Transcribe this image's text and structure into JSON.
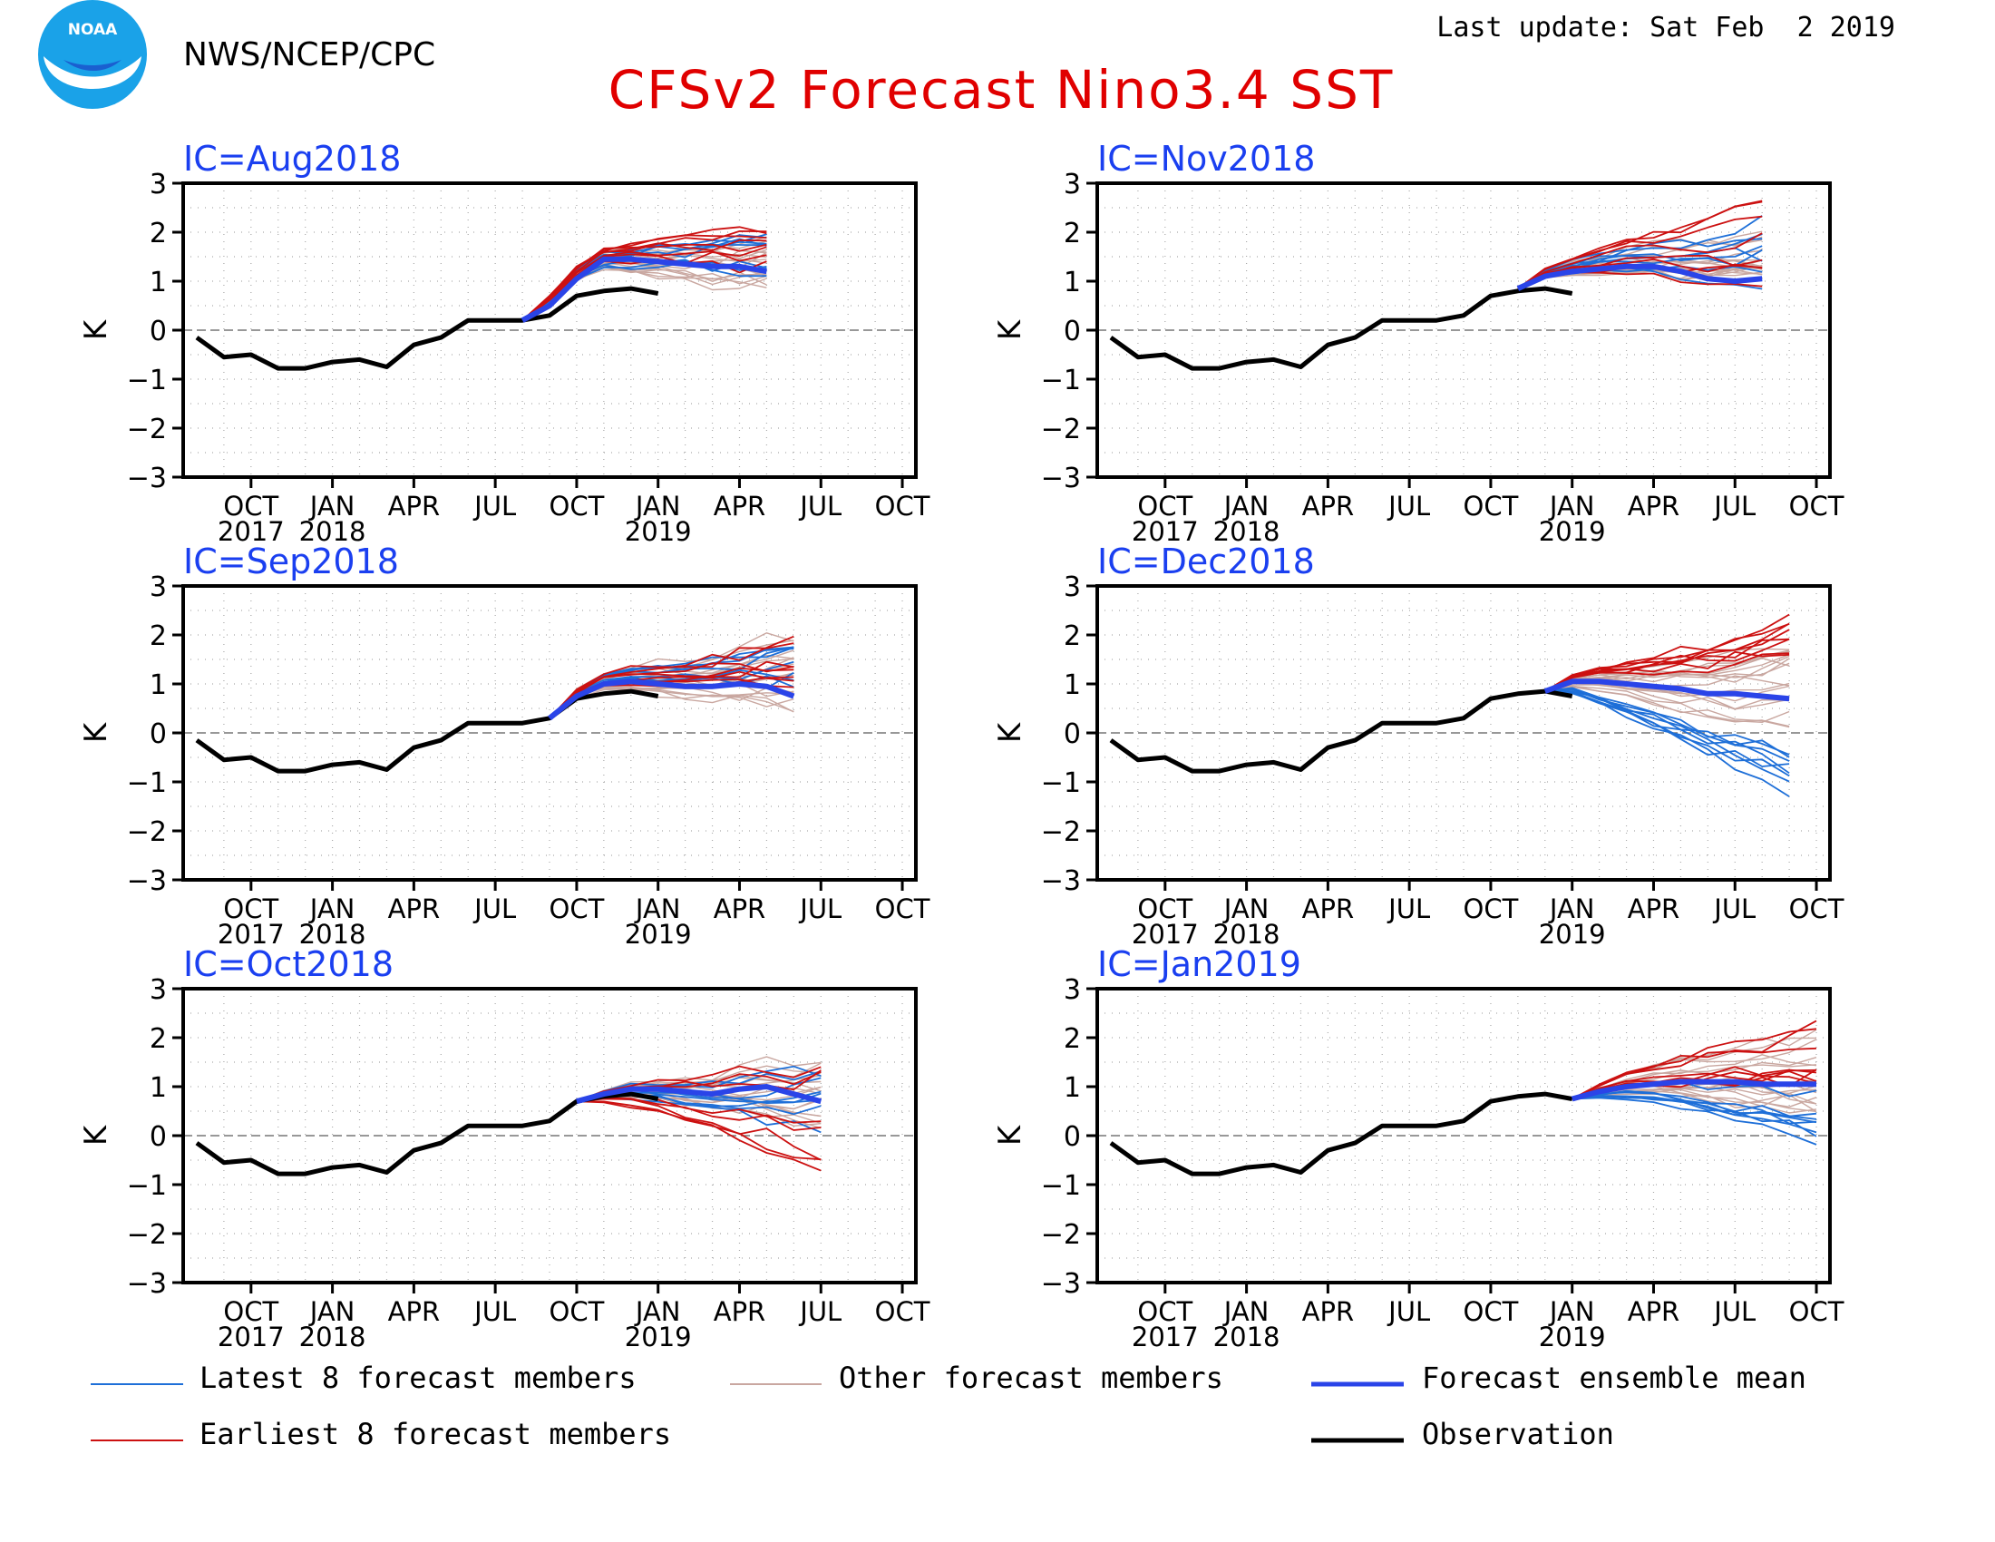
{
  "header": {
    "agency": "NWS/NCEP/CPC",
    "title": "CFSv2 Forecast Nino3.4 SST",
    "last_update": "Last update: Sat Feb  2 2019",
    "logo_text": "NOAA"
  },
  "colors": {
    "title": "#e00000",
    "panel_title": "#1a3ff0",
    "latest": "#1e6fd8",
    "earliest": "#cc1111",
    "other": "#c9a7a0",
    "mean": "#2a44e8",
    "obs": "#000000"
  },
  "legend": {
    "latest": "Latest 8 forecast members",
    "other": "Other forecast members",
    "mean": "Forecast ensemble mean",
    "earliest": "Earliest 8 forecast members",
    "obs": "Observation"
  },
  "chart_data": [
    {
      "type": "line",
      "title": "IC=Aug2018",
      "ylabel": "K",
      "xlabel": "",
      "ylim": [
        -3,
        3
      ],
      "yticks": [
        "3",
        "2",
        "1",
        "0",
        "−1",
        "−2",
        "−3"
      ],
      "x_range": [
        "2017-08",
        "2019-10"
      ],
      "x_ticks": [
        "OCT",
        "JAN",
        "APR",
        "JUL",
        "OCT",
        "JAN",
        "APR",
        "JUL",
        "OCT"
      ],
      "x_tick_years": [
        "2017",
        "2018",
        "",
        "",
        "",
        "2019",
        "",
        "",
        ""
      ],
      "grid": true,
      "series": [
        {
          "name": "Observation",
          "x": [
            "2017-08",
            "2017-09",
            "2017-10",
            "2017-11",
            "2017-12",
            "2018-01",
            "2018-02",
            "2018-03",
            "2018-04",
            "2018-05",
            "2018-06",
            "2018-07",
            "2018-08",
            "2018-09",
            "2018-10",
            "2018-11",
            "2018-12",
            "2019-01"
          ],
          "values": [
            -0.15,
            -0.55,
            -0.5,
            -0.78,
            -0.78,
            -0.65,
            -0.6,
            -0.75,
            -0.3,
            -0.15,
            0.2,
            0.2,
            0.2,
            0.3,
            0.7,
            0.8,
            0.85,
            0.75
          ]
        },
        {
          "name": "Forecast ensemble mean",
          "x": [
            "2018-08",
            "2018-09",
            "2018-10",
            "2018-11",
            "2018-12",
            "2019-01",
            "2019-02",
            "2019-03",
            "2019-04",
            "2019-05"
          ],
          "values": [
            0.2,
            0.5,
            1.05,
            1.45,
            1.45,
            1.4,
            1.35,
            1.3,
            1.3,
            1.2
          ]
        }
      ],
      "spread": {
        "latest": [
          1.55,
          0.35
        ],
        "earliest": [
          1.7,
          0.5
        ],
        "other": [
          1.45,
          0.55
        ],
        "n_latest": 8,
        "n_earliest": 8,
        "n_other": 16
      }
    },
    {
      "type": "line",
      "title": "IC=Nov2018",
      "ylabel": "K",
      "xlabel": "",
      "ylim": [
        -3,
        3
      ],
      "yticks": [
        "3",
        "2",
        "1",
        "0",
        "−1",
        "−2",
        "−3"
      ],
      "x_range": [
        "2017-08",
        "2019-10"
      ],
      "x_ticks": [
        "OCT",
        "JAN",
        "APR",
        "JUL",
        "OCT",
        "JAN",
        "APR",
        "JUL",
        "OCT"
      ],
      "x_tick_years": [
        "2017",
        "2018",
        "",
        "",
        "",
        "2019",
        "",
        "",
        ""
      ],
      "grid": true,
      "series": [
        {
          "name": "Observation",
          "x": [
            "2017-08",
            "2017-09",
            "2017-10",
            "2017-11",
            "2017-12",
            "2018-01",
            "2018-02",
            "2018-03",
            "2018-04",
            "2018-05",
            "2018-06",
            "2018-07",
            "2018-08",
            "2018-09",
            "2018-10",
            "2018-11",
            "2018-12",
            "2019-01"
          ],
          "values": [
            -0.15,
            -0.55,
            -0.5,
            -0.78,
            -0.78,
            -0.65,
            -0.6,
            -0.75,
            -0.3,
            -0.15,
            0.2,
            0.2,
            0.2,
            0.3,
            0.7,
            0.8,
            0.85,
            0.75
          ]
        },
        {
          "name": "Forecast ensemble mean",
          "x": [
            "2018-11",
            "2018-12",
            "2019-01",
            "2019-02",
            "2019-03",
            "2019-04",
            "2019-05",
            "2019-06",
            "2019-07",
            "2019-08"
          ],
          "values": [
            0.85,
            1.1,
            1.2,
            1.25,
            1.3,
            1.3,
            1.2,
            1.05,
            1.0,
            1.05
          ]
        }
      ],
      "spread": {
        "latest": [
          1.7,
          0.6
        ],
        "earliest": [
          1.8,
          0.8
        ],
        "other": [
          1.5,
          0.6
        ],
        "n_latest": 8,
        "n_earliest": 8,
        "n_other": 16
      }
    },
    {
      "type": "line",
      "title": "IC=Sep2018",
      "ylabel": "K",
      "xlabel": "",
      "ylim": [
        -3,
        3
      ],
      "yticks": [
        "3",
        "2",
        "1",
        "0",
        "−1",
        "−2",
        "−3"
      ],
      "x_range": [
        "2017-08",
        "2019-10"
      ],
      "x_ticks": [
        "OCT",
        "JAN",
        "APR",
        "JUL",
        "OCT",
        "JAN",
        "APR",
        "JUL",
        "OCT"
      ],
      "x_tick_years": [
        "2017",
        "2018",
        "",
        "",
        "",
        "2019",
        "",
        "",
        ""
      ],
      "grid": true,
      "series": [
        {
          "name": "Observation",
          "x": [
            "2017-08",
            "2017-09",
            "2017-10",
            "2017-11",
            "2017-12",
            "2018-01",
            "2018-02",
            "2018-03",
            "2018-04",
            "2018-05",
            "2018-06",
            "2018-07",
            "2018-08",
            "2018-09",
            "2018-10",
            "2018-11",
            "2018-12",
            "2019-01"
          ],
          "values": [
            -0.15,
            -0.55,
            -0.5,
            -0.78,
            -0.78,
            -0.65,
            -0.6,
            -0.75,
            -0.3,
            -0.15,
            0.2,
            0.2,
            0.2,
            0.3,
            0.7,
            0.8,
            0.85,
            0.75
          ]
        },
        {
          "name": "Forecast ensemble mean",
          "x": [
            "2018-09",
            "2018-10",
            "2018-11",
            "2018-12",
            "2019-01",
            "2019-02",
            "2019-03",
            "2019-04",
            "2019-05",
            "2019-06"
          ],
          "values": [
            0.3,
            0.75,
            1.0,
            1.05,
            1.0,
            0.95,
            0.95,
            1.0,
            0.95,
            0.75
          ]
        }
      ],
      "spread": {
        "latest": [
          1.45,
          0.4
        ],
        "earliest": [
          1.5,
          0.7
        ],
        "other": [
          1.3,
          0.8
        ],
        "n_latest": 8,
        "n_earliest": 8,
        "n_other": 16
      }
    },
    {
      "type": "line",
      "title": "IC=Dec2018",
      "ylabel": "K",
      "xlabel": "",
      "ylim": [
        -3,
        3
      ],
      "yticks": [
        "3",
        "2",
        "1",
        "0",
        "−1",
        "−2",
        "−3"
      ],
      "x_range": [
        "2017-08",
        "2019-10"
      ],
      "x_ticks": [
        "OCT",
        "JAN",
        "APR",
        "JUL",
        "OCT",
        "JAN",
        "APR",
        "JUL",
        "OCT"
      ],
      "x_tick_years": [
        "2017",
        "2018",
        "",
        "",
        "",
        "2019",
        "",
        "",
        ""
      ],
      "grid": true,
      "series": [
        {
          "name": "Observation",
          "x": [
            "2017-08",
            "2017-09",
            "2017-10",
            "2017-11",
            "2017-12",
            "2018-01",
            "2018-02",
            "2018-03",
            "2018-04",
            "2018-05",
            "2018-06",
            "2018-07",
            "2018-08",
            "2018-09",
            "2018-10",
            "2018-11",
            "2018-12",
            "2019-01"
          ],
          "values": [
            -0.15,
            -0.55,
            -0.5,
            -0.78,
            -0.78,
            -0.65,
            -0.6,
            -0.75,
            -0.3,
            -0.15,
            0.2,
            0.2,
            0.2,
            0.3,
            0.7,
            0.8,
            0.85,
            0.75
          ]
        },
        {
          "name": "Forecast ensemble mean",
          "x": [
            "2018-12",
            "2019-01",
            "2019-02",
            "2019-03",
            "2019-04",
            "2019-05",
            "2019-06",
            "2019-07",
            "2019-08",
            "2019-09"
          ],
          "values": [
            0.85,
            1.05,
            1.05,
            1.0,
            0.95,
            0.9,
            0.8,
            0.8,
            0.75,
            0.7
          ]
        }
      ],
      "spread": {
        "latest": [
          -0.45,
          0.6
        ],
        "earliest": [
          2.0,
          0.3
        ],
        "other": [
          0.9,
          0.9
        ],
        "n_latest": 8,
        "n_earliest": 8,
        "n_other": 16
      }
    },
    {
      "type": "line",
      "title": "IC=Oct2018",
      "ylabel": "K",
      "xlabel": "",
      "ylim": [
        -3,
        3
      ],
      "yticks": [
        "3",
        "2",
        "1",
        "0",
        "−1",
        "−2",
        "−3"
      ],
      "x_range": [
        "2017-08",
        "2019-10"
      ],
      "x_ticks": [
        "OCT",
        "JAN",
        "APR",
        "JUL",
        "OCT",
        "JAN",
        "APR",
        "JUL",
        "OCT"
      ],
      "x_tick_years": [
        "2017",
        "2018",
        "",
        "",
        "",
        "2019",
        "",
        "",
        ""
      ],
      "grid": true,
      "series": [
        {
          "name": "Observation",
          "x": [
            "2017-08",
            "2017-09",
            "2017-10",
            "2017-11",
            "2017-12",
            "2018-01",
            "2018-02",
            "2018-03",
            "2018-04",
            "2018-05",
            "2018-06",
            "2018-07",
            "2018-08",
            "2018-09",
            "2018-10",
            "2018-11",
            "2018-12",
            "2019-01"
          ],
          "values": [
            -0.15,
            -0.55,
            -0.5,
            -0.78,
            -0.78,
            -0.65,
            -0.6,
            -0.75,
            -0.3,
            -0.15,
            0.2,
            0.2,
            0.2,
            0.3,
            0.7,
            0.8,
            0.85,
            0.75
          ]
        },
        {
          "name": "Forecast ensemble mean",
          "x": [
            "2018-10",
            "2018-11",
            "2018-12",
            "2019-01",
            "2019-02",
            "2019-03",
            "2019-04",
            "2019-05",
            "2019-06",
            "2019-07"
          ],
          "values": [
            0.7,
            0.85,
            0.95,
            0.95,
            0.9,
            0.85,
            0.95,
            1.0,
            0.85,
            0.7
          ]
        }
      ],
      "spread": {
        "latest": [
          0.8,
          0.8
        ],
        "earliest": [
          0.4,
          1.2
        ],
        "other": [
          1.2,
          0.9
        ],
        "n_latest": 8,
        "n_earliest": 8,
        "n_other": 16
      }
    },
    {
      "type": "line",
      "title": "IC=Jan2019",
      "ylabel": "K",
      "xlabel": "",
      "ylim": [
        -3,
        3
      ],
      "yticks": [
        "3",
        "2",
        "1",
        "0",
        "−1",
        "−2",
        "−3"
      ],
      "x_range": [
        "2017-08",
        "2019-10"
      ],
      "x_ticks": [
        "OCT",
        "JAN",
        "APR",
        "JUL",
        "OCT",
        "JAN",
        "APR",
        "JUL",
        "OCT"
      ],
      "x_tick_years": [
        "2017",
        "2018",
        "",
        "",
        "",
        "2019",
        "",
        "",
        ""
      ],
      "grid": true,
      "series": [
        {
          "name": "Observation",
          "x": [
            "2017-08",
            "2017-09",
            "2017-10",
            "2017-11",
            "2017-12",
            "2018-01",
            "2018-02",
            "2018-03",
            "2018-04",
            "2018-05",
            "2018-06",
            "2018-07",
            "2018-08",
            "2018-09",
            "2018-10",
            "2018-11",
            "2018-12",
            "2019-01"
          ],
          "values": [
            -0.15,
            -0.55,
            -0.5,
            -0.78,
            -0.78,
            -0.65,
            -0.6,
            -0.75,
            -0.3,
            -0.15,
            0.2,
            0.2,
            0.2,
            0.3,
            0.7,
            0.8,
            0.85,
            0.75
          ]
        },
        {
          "name": "Forecast ensemble mean",
          "x": [
            "2019-01",
            "2019-02",
            "2019-03",
            "2019-04",
            "2019-05",
            "2019-06",
            "2019-07",
            "2019-08",
            "2019-09",
            "2019-10"
          ],
          "values": [
            0.75,
            0.9,
            1.0,
            1.05,
            1.1,
            1.1,
            1.1,
            1.05,
            1.05,
            1.05
          ]
        }
      ],
      "spread": {
        "latest": [
          0.3,
          0.7
        ],
        "earliest": [
          1.7,
          0.6
        ],
        "other": [
          1.2,
          1.0
        ],
        "n_latest": 8,
        "n_earliest": 8,
        "n_other": 16
      }
    }
  ]
}
